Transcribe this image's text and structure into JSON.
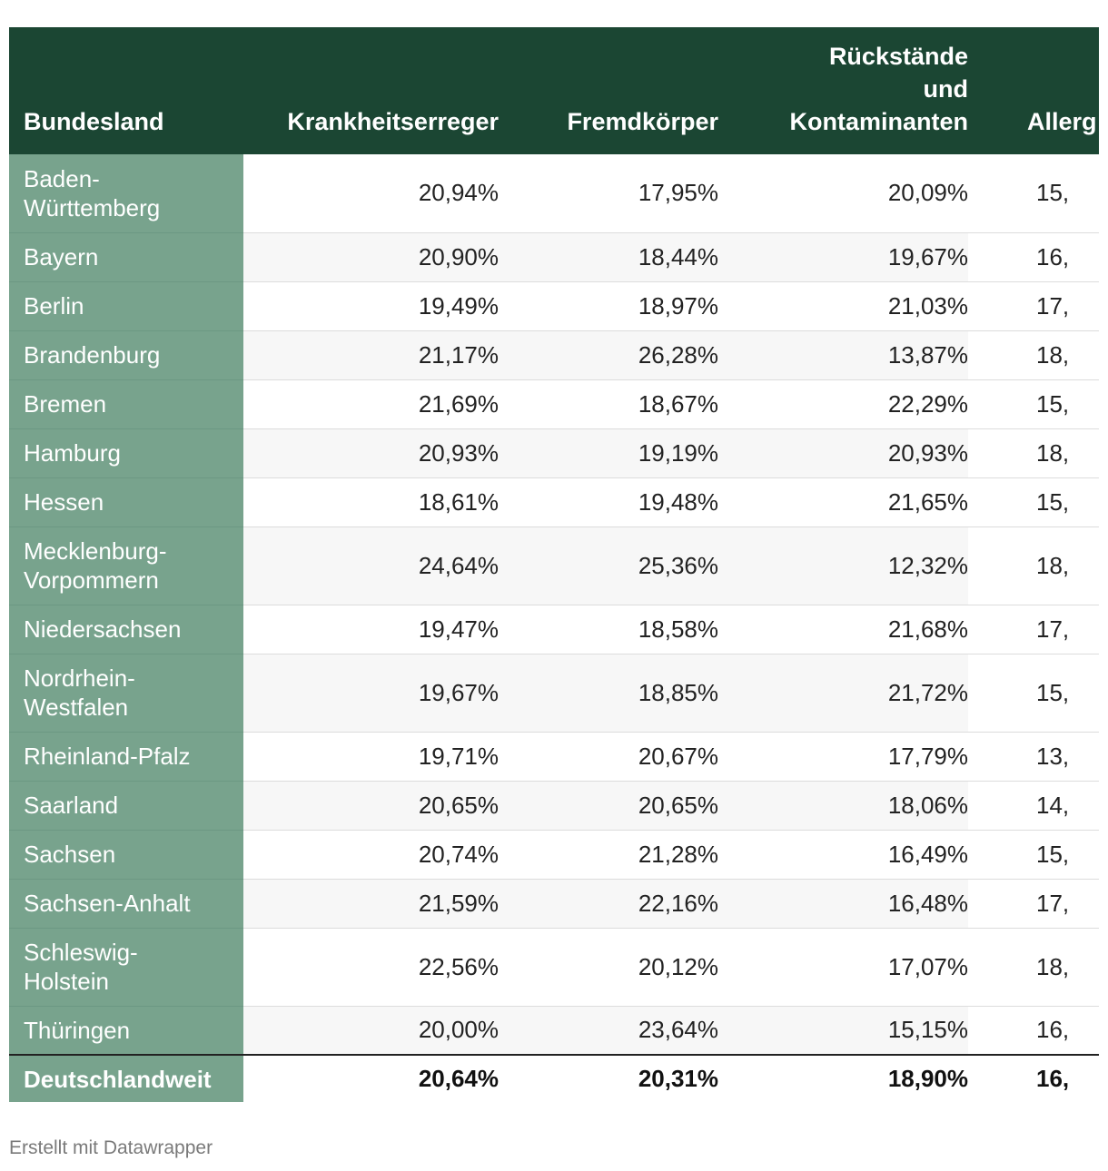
{
  "chart_data": {
    "type": "table",
    "columns": [
      "Bundesland",
      "Krankheitserreger",
      "Fremdkörper",
      "Rückstände und Kontaminanten",
      "Allerg"
    ],
    "header_lines": {
      "col0": [
        "Bundesland"
      ],
      "col1": [
        "Krankheitserreger"
      ],
      "col2": [
        "Fremdkörper"
      ],
      "col3": [
        "Rückstände",
        "und",
        "Kontaminanten"
      ],
      "col4": [
        "Allerg"
      ]
    },
    "rows": [
      {
        "name": [
          "Baden-",
          "Württemberg"
        ],
        "values": [
          "20,94%",
          "17,95%",
          "20,09%",
          "15,"
        ]
      },
      {
        "name": [
          "Bayern"
        ],
        "values": [
          "20,90%",
          "18,44%",
          "19,67%",
          "16,"
        ]
      },
      {
        "name": [
          "Berlin"
        ],
        "values": [
          "19,49%",
          "18,97%",
          "21,03%",
          "17,"
        ]
      },
      {
        "name": [
          "Brandenburg"
        ],
        "values": [
          "21,17%",
          "26,28%",
          "13,87%",
          "18,"
        ]
      },
      {
        "name": [
          "Bremen"
        ],
        "values": [
          "21,69%",
          "18,67%",
          "22,29%",
          "15,"
        ]
      },
      {
        "name": [
          "Hamburg"
        ],
        "values": [
          "20,93%",
          "19,19%",
          "20,93%",
          "18,"
        ]
      },
      {
        "name": [
          "Hessen"
        ],
        "values": [
          "18,61%",
          "19,48%",
          "21,65%",
          "15,"
        ]
      },
      {
        "name": [
          "Mecklenburg-",
          "Vorpommern"
        ],
        "values": [
          "24,64%",
          "25,36%",
          "12,32%",
          "18,"
        ]
      },
      {
        "name": [
          "Niedersachsen"
        ],
        "values": [
          "19,47%",
          "18,58%",
          "21,68%",
          "17,"
        ]
      },
      {
        "name": [
          "Nordrhein-",
          "Westfalen"
        ],
        "values": [
          "19,67%",
          "18,85%",
          "21,72%",
          "15,"
        ]
      },
      {
        "name": [
          "Rheinland-Pfalz"
        ],
        "values": [
          "19,71%",
          "20,67%",
          "17,79%",
          "13,"
        ]
      },
      {
        "name": [
          "Saarland"
        ],
        "values": [
          "20,65%",
          "20,65%",
          "18,06%",
          "14,"
        ]
      },
      {
        "name": [
          "Sachsen"
        ],
        "values": [
          "20,74%",
          "21,28%",
          "16,49%",
          "15,"
        ]
      },
      {
        "name": [
          "Sachsen-Anhalt"
        ],
        "values": [
          "21,59%",
          "22,16%",
          "16,48%",
          "17,"
        ]
      },
      {
        "name": [
          "Schleswig-",
          "Holstein"
        ],
        "values": [
          "22,56%",
          "20,12%",
          "17,07%",
          "18,"
        ]
      },
      {
        "name": [
          "Thüringen"
        ],
        "values": [
          "20,00%",
          "23,64%",
          "15,15%",
          "16,"
        ]
      }
    ],
    "total": {
      "name": "Deutschlandweit",
      "values": [
        "20,64%",
        "20,31%",
        "18,90%",
        "16,"
      ]
    }
  },
  "footer": {
    "credit": "Erstellt mit Datawrapper"
  },
  "colors": {
    "header_bg": "#1b4633",
    "first_col_bg": "#78a38d",
    "alt_row_bg": "#f7f7f7"
  }
}
